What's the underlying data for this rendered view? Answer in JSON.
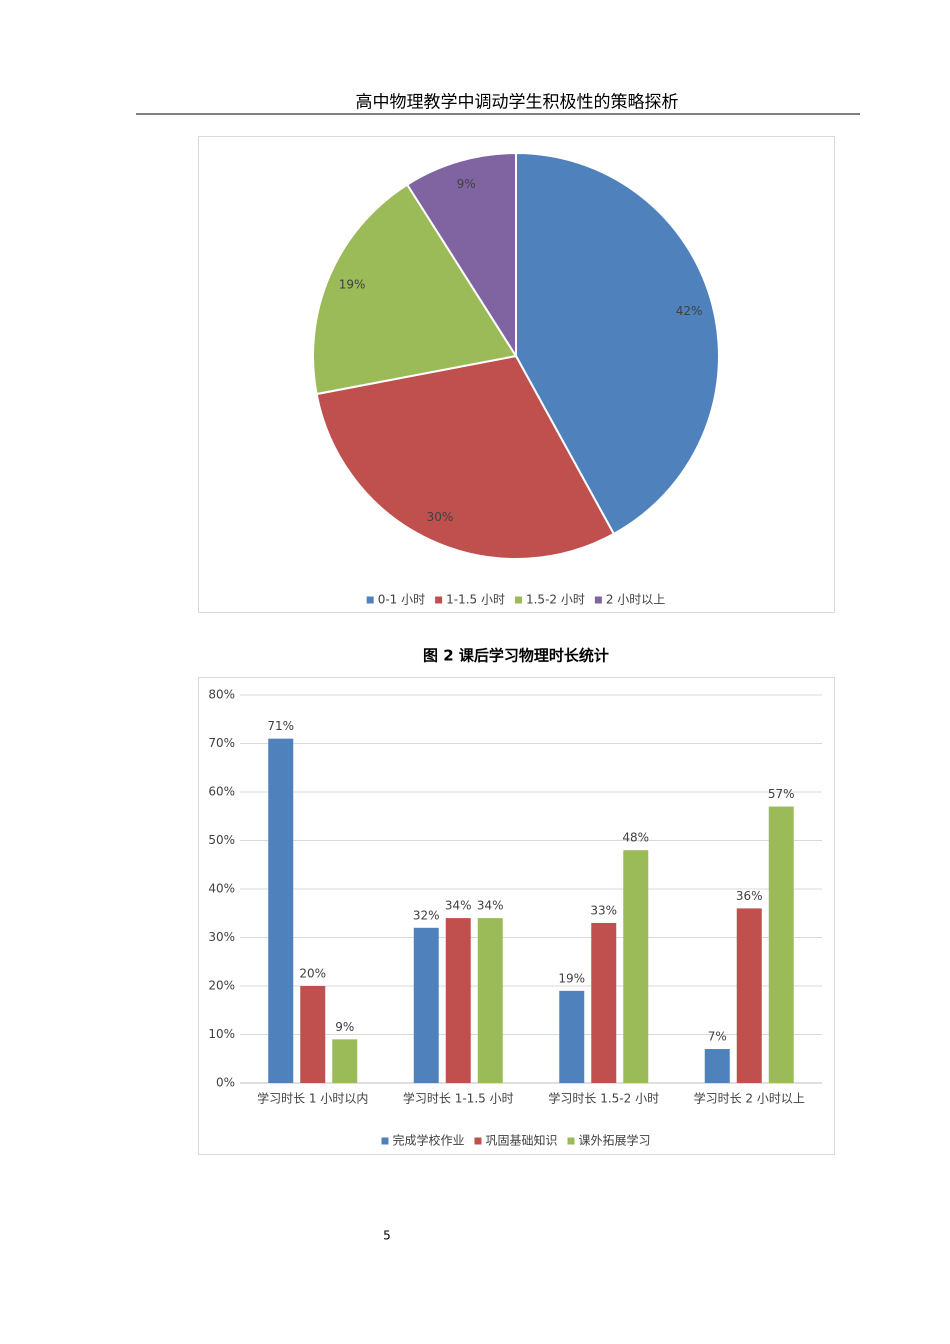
{
  "header": {
    "title": "高中物理教学中调动学生积极性的策略探析"
  },
  "caption": "图 2  课后学习物理时长统计",
  "page_number": "5",
  "chart_data": [
    {
      "type": "pie",
      "categories": [
        "0-1 小时",
        "1-1.5 小时",
        "1.5-2 小时",
        "2 小时以上"
      ],
      "values": [
        42,
        30,
        19,
        9
      ],
      "value_labels": [
        "42%",
        "30%",
        "19%",
        "9%"
      ],
      "colors": [
        "#4f81bd",
        "#c0504d",
        "#9bbb59",
        "#8064a2"
      ],
      "legend": "bottom"
    },
    {
      "type": "bar",
      "categories": [
        "学习时长 1 小时以内",
        "学习时长 1-1.5 小时",
        "学习时长 1.5-2 小时",
        "学习时长 2 小时以上"
      ],
      "series": [
        {
          "name": "完成学校作业",
          "color": "#4f81bd",
          "values": [
            71,
            32,
            19,
            7
          ],
          "value_labels": [
            "71%",
            "32%",
            "19%",
            "7%"
          ]
        },
        {
          "name": "巩固基础知识",
          "color": "#c0504d",
          "values": [
            20,
            34,
            33,
            36
          ],
          "value_labels": [
            "20%",
            "34%",
            "33%",
            "36%"
          ]
        },
        {
          "name": "课外拓展学习",
          "color": "#9bbb59",
          "values": [
            9,
            34,
            48,
            57
          ],
          "value_labels": [
            "9%",
            "34%",
            "48%",
            "57%"
          ]
        }
      ],
      "ylim": [
        0,
        80
      ],
      "yticks": [
        {
          "value": 0,
          "label": "0%"
        },
        {
          "value": 10,
          "label": "10%"
        },
        {
          "value": 20,
          "label": "20%"
        },
        {
          "value": 30,
          "label": "30%"
        },
        {
          "value": 40,
          "label": "40%"
        },
        {
          "value": 50,
          "label": "50%"
        },
        {
          "value": 60,
          "label": "60%"
        },
        {
          "value": 70,
          "label": "70%"
        },
        {
          "value": 80,
          "label": "80%"
        }
      ],
      "grid": true,
      "legend": "bottom"
    }
  ]
}
